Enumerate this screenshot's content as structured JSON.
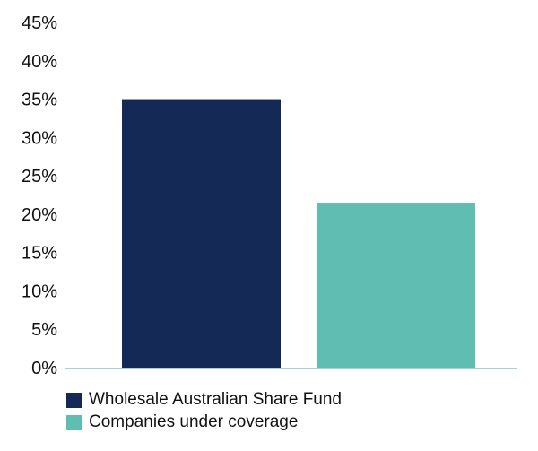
{
  "chart_data": {
    "type": "bar",
    "categories": [
      "Wholesale Australian Share Fund",
      "Companies under coverage"
    ],
    "values": [
      35,
      21.5
    ],
    "colors": [
      "#142955",
      "#5fbdb2"
    ],
    "ylim": [
      0,
      45
    ],
    "yticks": [
      0,
      5,
      10,
      15,
      20,
      25,
      30,
      35,
      40,
      45
    ],
    "ytick_labels": [
      "0%",
      "5%",
      "10%",
      "15%",
      "20%",
      "25%",
      "30%",
      "35%",
      "40%",
      "45%"
    ],
    "axis_color": "#9fd7d1",
    "grid": false,
    "legend_position": "bottom-left",
    "legend": [
      {
        "label": "Wholesale Australian Share Fund",
        "color": "#142955"
      },
      {
        "label": "Companies under coverage",
        "color": "#5fbdb2"
      }
    ]
  }
}
